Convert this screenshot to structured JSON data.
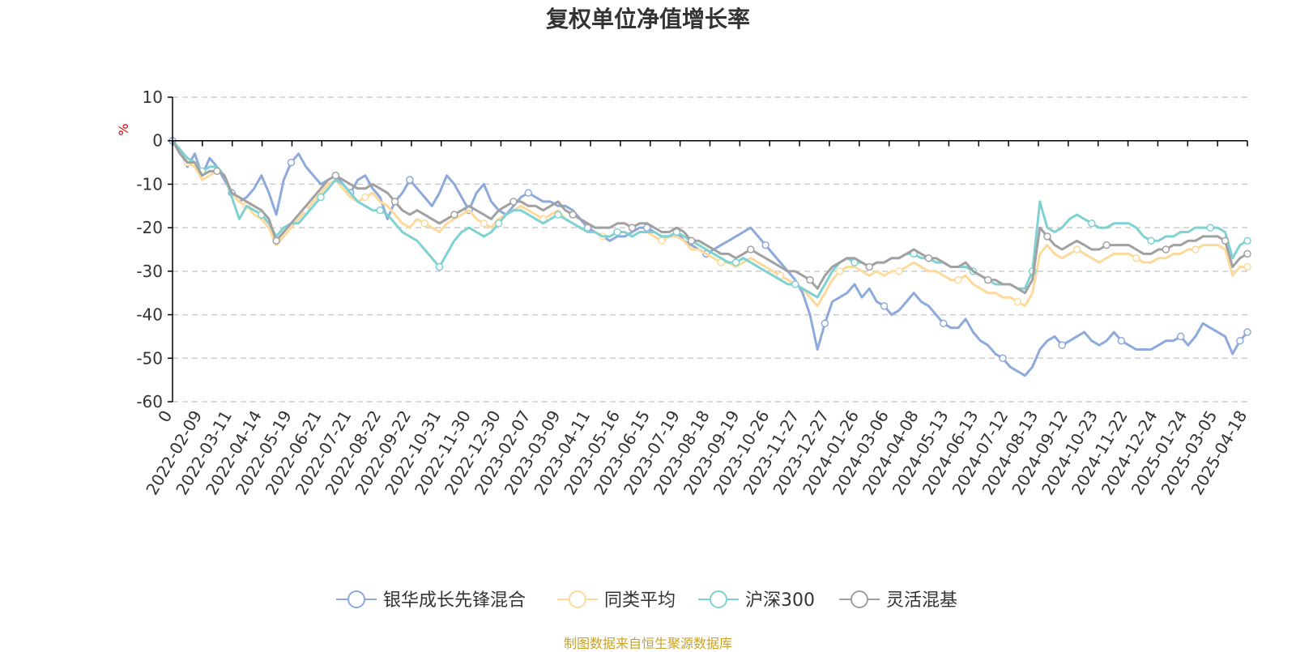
{
  "chart_data": {
    "type": "line",
    "title": "复权单位净值增长率",
    "ylabel": "%",
    "xlabel": "",
    "ylim": [
      -60,
      10
    ],
    "y_ticks": [
      10,
      0,
      -10,
      -20,
      -30,
      -40,
      -50,
      -60
    ],
    "x_labels": [
      "0",
      "2022-02-09",
      "2022-03-11",
      "2022-04-14",
      "2022-05-19",
      "2022-06-21",
      "2022-07-21",
      "2022-08-22",
      "2022-09-22",
      "2022-10-31",
      "2022-11-30",
      "2022-12-30",
      "2023-02-07",
      "2023-03-09",
      "2023-04-11",
      "2023-05-16",
      "2023-06-15",
      "2023-07-19",
      "2023-08-18",
      "2023-09-19",
      "2023-10-26",
      "2023-11-27",
      "2023-12-27",
      "2024-01-26",
      "2024-03-06",
      "2024-04-08",
      "2024-05-13",
      "2024-06-13",
      "2024-07-12",
      "2024-08-13",
      "2024-09-12",
      "2024-10-23",
      "2024-11-22",
      "2024-12-24",
      "2025-01-24",
      "2025-03-05",
      "2025-04-18"
    ],
    "grid": true,
    "legend_position": "bottom-center",
    "series": [
      {
        "name": "银华成长先锋混合",
        "color": "#8eaadb",
        "values": [
          0,
          -2,
          -6,
          -3,
          -8,
          -4,
          -6,
          -9,
          -12,
          -14,
          -13,
          -11,
          -8,
          -12,
          -17,
          -9,
          -5,
          -3,
          -6,
          -8,
          -10,
          -9,
          -8,
          -10,
          -12,
          -9,
          -8,
          -11,
          -13,
          -18,
          -14,
          -12,
          -9,
          -11,
          -13,
          -15,
          -12,
          -8,
          -10,
          -13,
          -16,
          -12,
          -10,
          -14,
          -16,
          -17,
          -15,
          -13,
          -12,
          -13,
          -14,
          -14,
          -15,
          -15,
          -16,
          -18,
          -20,
          -21,
          -22,
          -23,
          -22,
          -22,
          -21,
          -20,
          -20,
          -21,
          -22,
          -22,
          -21,
          -23,
          -24,
          -25,
          -26,
          -25,
          -24,
          -23,
          -22,
          -21,
          -20,
          -22,
          -24,
          -26,
          -28,
          -30,
          -32,
          -35,
          -40,
          -48,
          -42,
          -37,
          -36,
          -35,
          -33,
          -36,
          -34,
          -37,
          -38,
          -40,
          -39,
          -37,
          -35,
          -37,
          -38,
          -40,
          -42,
          -43,
          -43,
          -41,
          -44,
          -46,
          -47,
          -49,
          -50,
          -52,
          -53,
          -54,
          -52,
          -48,
          -46,
          -45,
          -47,
          -46,
          -45,
          -44,
          -46,
          -47,
          -46,
          -44,
          -46,
          -47,
          -48,
          -48,
          -48,
          -47,
          -46,
          -46,
          -45,
          -47,
          -45,
          -42,
          -43,
          -44,
          -45,
          -49,
          -46,
          -44
        ]
      },
      {
        "name": "同类平均",
        "color": "#fdd99b",
        "values": [
          0,
          -3,
          -5,
          -6,
          -9,
          -8,
          -7,
          -8,
          -12,
          -14,
          -15,
          -17,
          -18,
          -20,
          -24,
          -22,
          -20,
          -18,
          -16,
          -14,
          -12,
          -10,
          -9,
          -11,
          -13,
          -14,
          -13,
          -12,
          -14,
          -15,
          -17,
          -19,
          -20,
          -18,
          -19,
          -20,
          -21,
          -19,
          -18,
          -17,
          -16,
          -18,
          -19,
          -20,
          -18,
          -17,
          -16,
          -15,
          -16,
          -17,
          -18,
          -17,
          -16,
          -18,
          -19,
          -20,
          -21,
          -21,
          -22,
          -22,
          -21,
          -21,
          -22,
          -21,
          -21,
          -22,
          -23,
          -22,
          -22,
          -23,
          -25,
          -25,
          -26,
          -27,
          -28,
          -28,
          -29,
          -28,
          -27,
          -28,
          -29,
          -30,
          -31,
          -32,
          -33,
          -34,
          -36,
          -38,
          -35,
          -32,
          -30,
          -29,
          -29,
          -30,
          -31,
          -30,
          -31,
          -30,
          -30,
          -29,
          -28,
          -29,
          -30,
          -30,
          -31,
          -32,
          -32,
          -31,
          -33,
          -34,
          -35,
          -35,
          -36,
          -36,
          -37,
          -38,
          -35,
          -26,
          -24,
          -26,
          -27,
          -26,
          -25,
          -26,
          -27,
          -28,
          -27,
          -26,
          -26,
          -26,
          -27,
          -28,
          -28,
          -27,
          -27,
          -26,
          -26,
          -25,
          -25,
          -24,
          -24,
          -24,
          -25,
          -31,
          -29,
          -29
        ]
      },
      {
        "name": "沪深300",
        "color": "#7fd1d2",
        "values": [
          0,
          -2,
          -4,
          -5,
          -7,
          -6,
          -6,
          -8,
          -13,
          -18,
          -15,
          -16,
          -17,
          -19,
          -22,
          -20,
          -19,
          -19,
          -17,
          -15,
          -13,
          -11,
          -9,
          -10,
          -12,
          -14,
          -15,
          -16,
          -16,
          -17,
          -19,
          -21,
          -22,
          -23,
          -25,
          -27,
          -29,
          -26,
          -23,
          -21,
          -20,
          -21,
          -22,
          -21,
          -19,
          -17,
          -16,
          -16,
          -17,
          -18,
          -19,
          -18,
          -17,
          -18,
          -19,
          -20,
          -21,
          -21,
          -22,
          -22,
          -21,
          -21,
          -22,
          -21,
          -21,
          -21,
          -22,
          -22,
          -21,
          -22,
          -23,
          -24,
          -25,
          -26,
          -27,
          -28,
          -28,
          -27,
          -28,
          -29,
          -30,
          -31,
          -32,
          -33,
          -33,
          -34,
          -35,
          -36,
          -33,
          -30,
          -28,
          -27,
          -28,
          -28,
          -29,
          -28,
          -28,
          -27,
          -27,
          -26,
          -26,
          -27,
          -27,
          -28,
          -28,
          -29,
          -29,
          -29,
          -30,
          -31,
          -32,
          -33,
          -33,
          -33,
          -34,
          -34,
          -30,
          -14,
          -20,
          -21,
          -20,
          -18,
          -17,
          -18,
          -19,
          -20,
          -20,
          -19,
          -19,
          -19,
          -20,
          -22,
          -23,
          -23,
          -22,
          -22,
          -21,
          -21,
          -20,
          -20,
          -20,
          -20,
          -21,
          -27,
          -24,
          -23
        ]
      },
      {
        "name": "灵活混基",
        "color": "#a1a1a1",
        "values": [
          0,
          -3,
          -5,
          -5,
          -8,
          -7,
          -7,
          -8,
          -12,
          -13,
          -14,
          -15,
          -16,
          -18,
          -23,
          -21,
          -19,
          -17,
          -15,
          -13,
          -11,
          -9,
          -8,
          -9,
          -10,
          -11,
          -11,
          -10,
          -11,
          -12,
          -14,
          -16,
          -17,
          -16,
          -17,
          -18,
          -19,
          -18,
          -17,
          -16,
          -15,
          -16,
          -17,
          -18,
          -16,
          -15,
          -14,
          -14,
          -15,
          -15,
          -16,
          -15,
          -14,
          -16,
          -17,
          -18,
          -19,
          -20,
          -20,
          -20,
          -19,
          -19,
          -20,
          -19,
          -19,
          -20,
          -21,
          -21,
          -20,
          -21,
          -23,
          -23,
          -24,
          -25,
          -26,
          -26,
          -27,
          -26,
          -25,
          -26,
          -27,
          -28,
          -29,
          -30,
          -30,
          -31,
          -32,
          -34,
          -31,
          -29,
          -28,
          -27,
          -27,
          -28,
          -29,
          -28,
          -28,
          -27,
          -27,
          -26,
          -25,
          -26,
          -27,
          -27,
          -28,
          -29,
          -29,
          -28,
          -30,
          -31,
          -32,
          -32,
          -33,
          -33,
          -34,
          -35,
          -32,
          -20,
          -22,
          -24,
          -25,
          -24,
          -23,
          -24,
          -25,
          -25,
          -24,
          -24,
          -24,
          -24,
          -25,
          -26,
          -26,
          -25,
          -25,
          -24,
          -24,
          -23,
          -23,
          -22,
          -22,
          -22,
          -23,
          -29,
          -27,
          -26
        ]
      }
    ],
    "source": "制图数据来自恒生聚源数据库"
  },
  "colors": {
    "title": "#333333",
    "axis": "#000000",
    "grid": "#cccccc",
    "ylabel": "#e60000",
    "source": "#c9a227"
  }
}
